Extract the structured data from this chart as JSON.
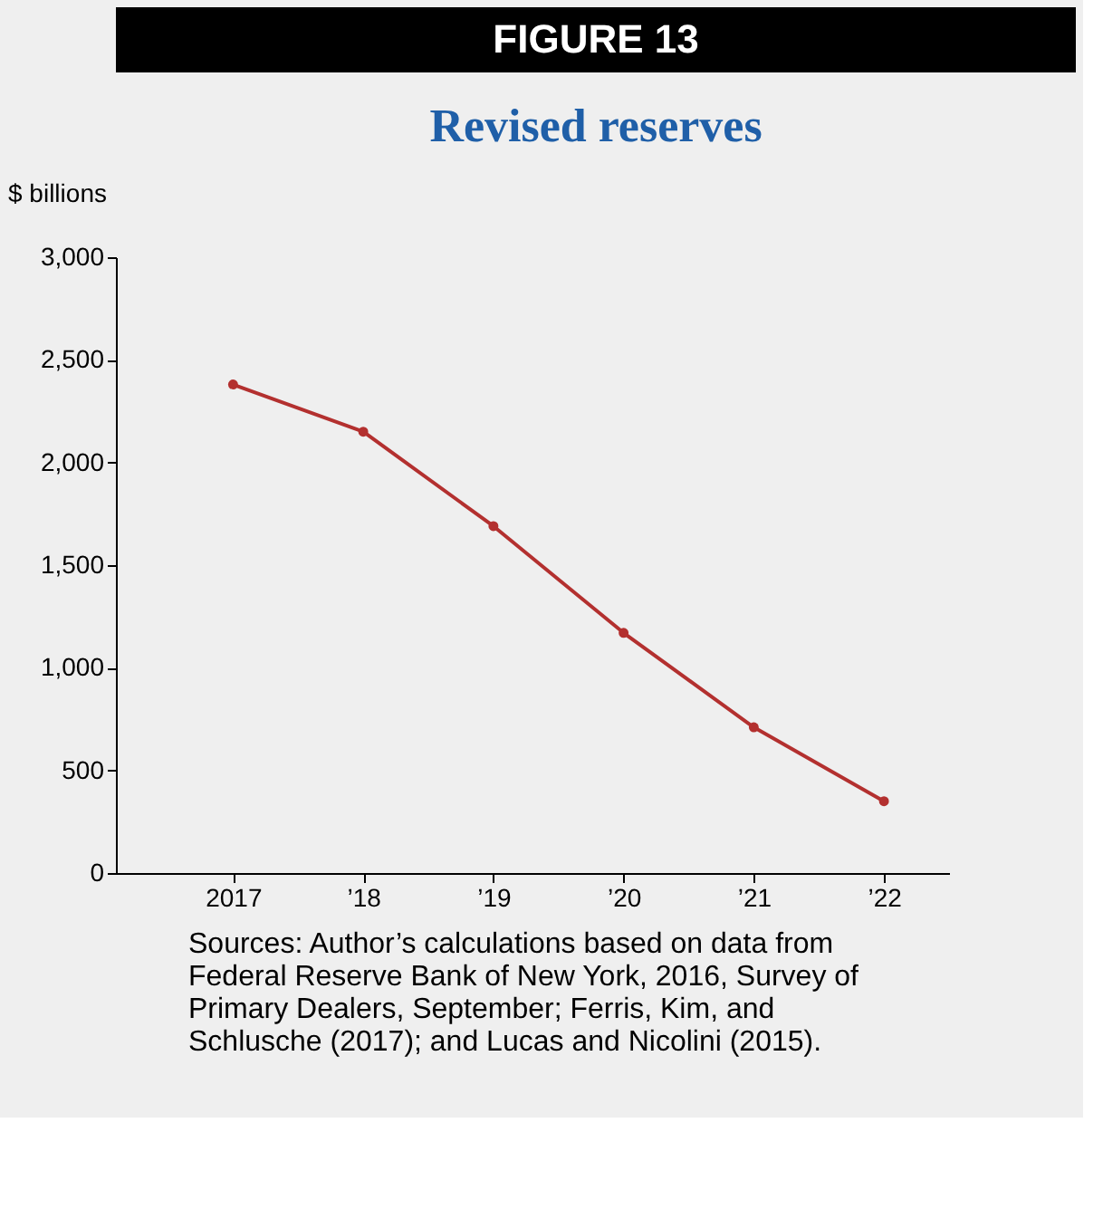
{
  "chart_data": {
    "type": "line",
    "title": "FIGURE 13",
    "subtitle": "Revised reserves",
    "ylabel": "$ billions",
    "categories": [
      "2017",
      "’18",
      "’19",
      "’20",
      "’21",
      "’22"
    ],
    "series": [
      {
        "color": "#b3302f",
        "values": [
          2380,
          2150,
          1690,
          1170,
          710,
          350
        ]
      }
    ],
    "ylim": [
      0,
      3000
    ],
    "yticks": [
      0,
      {
        "value": 500,
        "label": "500"
      },
      {
        "value": 1000,
        "label": "1,000"
      },
      {
        "value": 1500,
        "label": "1,500"
      },
      {
        "value": 2000,
        "label": "2,000"
      },
      {
        "value": 2500,
        "label": "2,500"
      },
      {
        "value": 3000,
        "label": "3,000"
      }
    ],
    "grid": false,
    "marker": "circle",
    "line_style": "solid",
    "annotations": [
      "Sources: Author’s calculations based on data from Federal Reserve Bank of New York, 2016, Survey of Primary Dealers, September; Ferris, Kim, and Schlusche (2017); and Lucas and Nicolini (2015)."
    ]
  }
}
